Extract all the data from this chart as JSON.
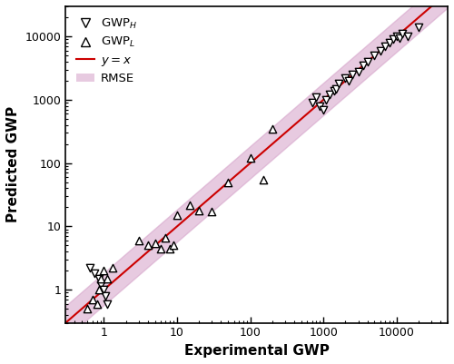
{
  "gwp_h_x": [
    0.65,
    0.75,
    0.85,
    0.9,
    1.0,
    1.05,
    1.1,
    700,
    800,
    900,
    1000,
    1100,
    1200,
    1400,
    1500,
    1600,
    2000,
    2200,
    2500,
    3000,
    3500,
    4000,
    5000,
    6000,
    7000,
    8000,
    9000,
    10000,
    11000,
    12000,
    14000,
    20000
  ],
  "gwp_h_y": [
    2.2,
    1.8,
    1.5,
    1.2,
    1.0,
    0.8,
    0.6,
    900,
    1100,
    800,
    700,
    1000,
    1200,
    1400,
    1500,
    1800,
    2200,
    2000,
    2500,
    2800,
    3500,
    4000,
    5000,
    6000,
    7000,
    8000,
    9000,
    10000,
    9500,
    11000,
    10000,
    14000
  ],
  "gwp_l_x": [
    0.6,
    0.7,
    0.8,
    0.85,
    0.9,
    1.0,
    1.1,
    1.3,
    3.0,
    4.0,
    5.0,
    6.0,
    7.0,
    8.0,
    9.0,
    10.0,
    15.0,
    20.0,
    30.0,
    50.0,
    100.0,
    150.0,
    200.0
  ],
  "gwp_l_y": [
    0.5,
    0.7,
    0.6,
    1.0,
    1.5,
    2.0,
    1.5,
    2.2,
    6.0,
    5.0,
    5.5,
    4.5,
    6.5,
    4.5,
    5.0,
    15.0,
    22.0,
    18.0,
    17.0,
    50.0,
    120.0,
    55.0,
    350.0
  ],
  "line_color": "#cc0000",
  "band_color": "#d4a0c8",
  "band_alpha": 0.55,
  "rmse_factor": 1.8,
  "xlabel": "Experimental GWP",
  "ylabel": "Predicted GWP",
  "marker_size": 6,
  "marker_lw": 1.0,
  "axis_lw": 1.2,
  "xticks": [
    1,
    10,
    100,
    1000,
    10000
  ],
  "yticks": [
    1,
    10,
    100,
    1000,
    10000
  ],
  "xlim": [
    0.3,
    50000
  ],
  "ylim": [
    0.3,
    30000
  ]
}
